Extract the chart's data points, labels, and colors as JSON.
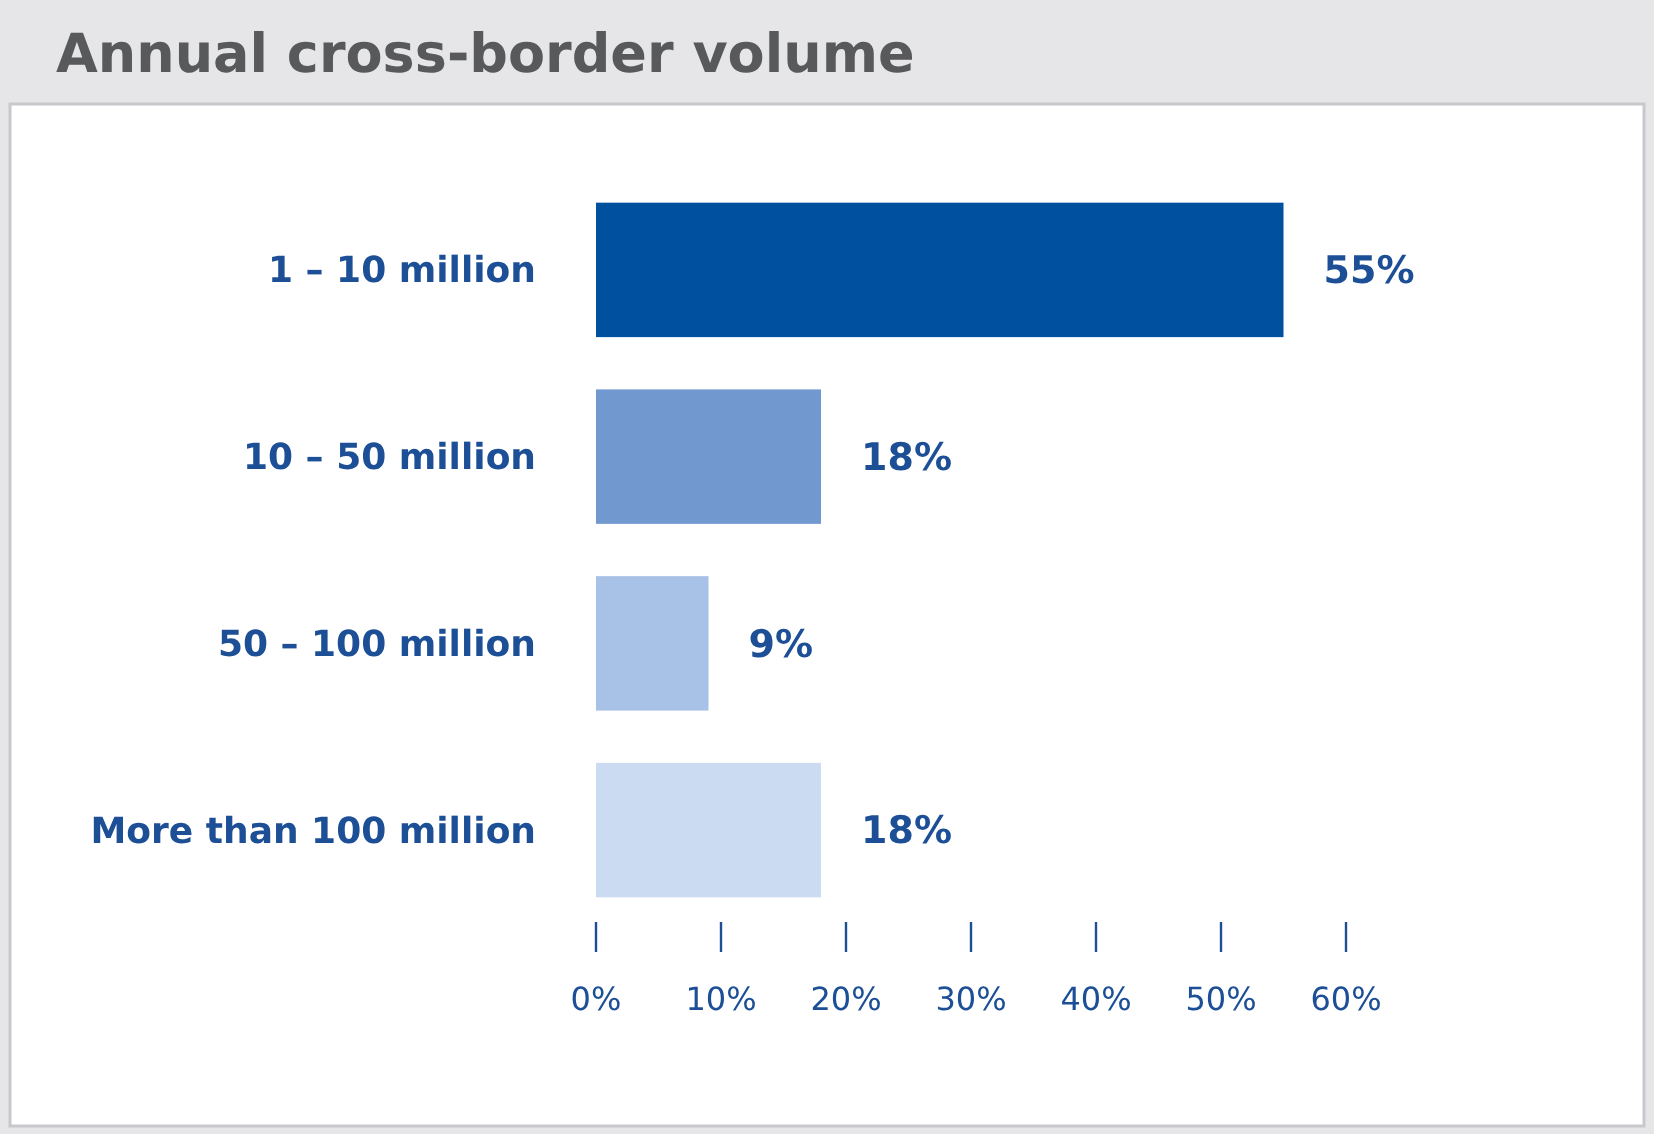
{
  "chart_data": {
    "type": "bar",
    "orientation": "horizontal",
    "title": "Annual cross-border volume",
    "categories": [
      "1 – 10 million",
      "10 – 50 million",
      "50 – 100 million",
      "More than 100 million"
    ],
    "values": [
      55,
      18,
      9,
      18
    ],
    "colors": [
      "#0050a0",
      "#7298d0",
      "#a8c1e7",
      "#cbdbf1"
    ],
    "value_labels": [
      "55%",
      "18%",
      "9%",
      "18%"
    ],
    "xlim": [
      0,
      60
    ],
    "xticks": [
      {
        "value": 0,
        "label": "0%"
      },
      {
        "value": 10,
        "label": "10%"
      },
      {
        "value": 20,
        "label": "20%"
      },
      {
        "value": 30,
        "label": "30%"
      },
      {
        "value": 40,
        "label": "40%"
      },
      {
        "value": 50,
        "label": "50%"
      },
      {
        "value": 60,
        "label": "60%"
      }
    ],
    "grid": false
  }
}
